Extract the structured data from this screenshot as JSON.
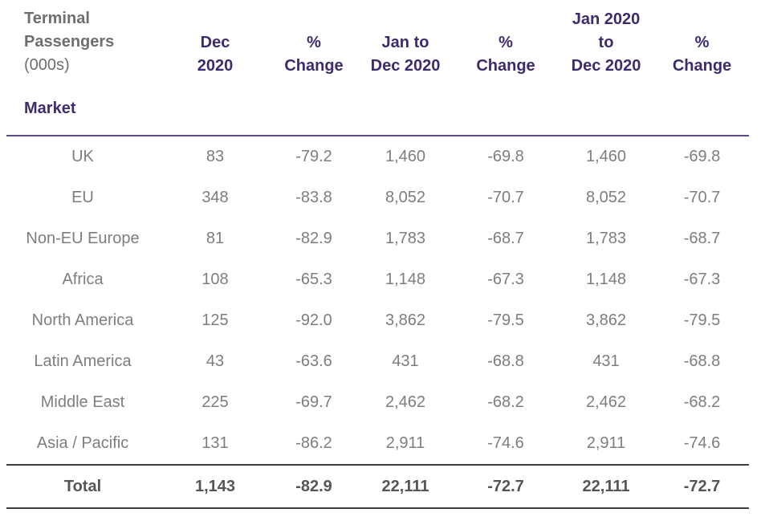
{
  "header": {
    "title": "Terminal Passengers",
    "unit": "(000s)",
    "market_label": "Market"
  },
  "table": {
    "columns": [
      {
        "id": "dec-2020",
        "lines": [
          "Dec",
          "2020"
        ]
      },
      {
        "id": "pct-change-month",
        "lines": [
          "%",
          "Change"
        ]
      },
      {
        "id": "jan-to-dec-2020",
        "lines": [
          "Jan to",
          "Dec 2020"
        ]
      },
      {
        "id": "pct-change-ytd",
        "lines": [
          "%",
          "Change"
        ]
      },
      {
        "id": "jan-2020-to-dec-2020",
        "lines": [
          "Jan 2020",
          "to",
          "Dec 2020"
        ]
      },
      {
        "id": "pct-change-12mo",
        "lines": [
          "%",
          "Change"
        ]
      }
    ],
    "rows": [
      {
        "market": "UK",
        "values": [
          "83",
          "-79.2",
          "1,460",
          "-69.8",
          "1,460",
          "-69.8"
        ]
      },
      {
        "market": "EU",
        "values": [
          "348",
          "-83.8",
          "8,052",
          "-70.7",
          "8,052",
          "-70.7"
        ]
      },
      {
        "market": "Non-EU Europe",
        "values": [
          "81",
          "-82.9",
          "1,783",
          "-68.7",
          "1,783",
          "-68.7"
        ]
      },
      {
        "market": "Africa",
        "values": [
          "108",
          "-65.3",
          "1,148",
          "-67.3",
          "1,148",
          "-67.3"
        ]
      },
      {
        "market": "North America",
        "values": [
          "125",
          "-92.0",
          "3,862",
          "-79.5",
          "3,862",
          "-79.5"
        ]
      },
      {
        "market": "Latin America",
        "values": [
          "43",
          "-63.6",
          "431",
          "-68.8",
          "431",
          "-68.8"
        ]
      },
      {
        "market": "Middle East",
        "values": [
          "225",
          "-69.7",
          "2,462",
          "-68.2",
          "2,462",
          "-68.2"
        ]
      },
      {
        "market": "Asia / Pacific",
        "values": [
          "131",
          "-86.2",
          "2,911",
          "-74.6",
          "2,911",
          "-74.6"
        ]
      }
    ],
    "total": {
      "market": "Total",
      "values": [
        "1,143",
        "-82.9",
        "22,111",
        "-72.7",
        "22,111",
        "-72.7"
      ]
    }
  },
  "colors": {
    "title_gray": "#6d6e71",
    "header_purple": "#3e2b6d",
    "data_gray": "#7d7e81",
    "total_gray": "#545559",
    "rule_purple": "#5f4a82",
    "rule_dark": "#3d3e3f"
  }
}
